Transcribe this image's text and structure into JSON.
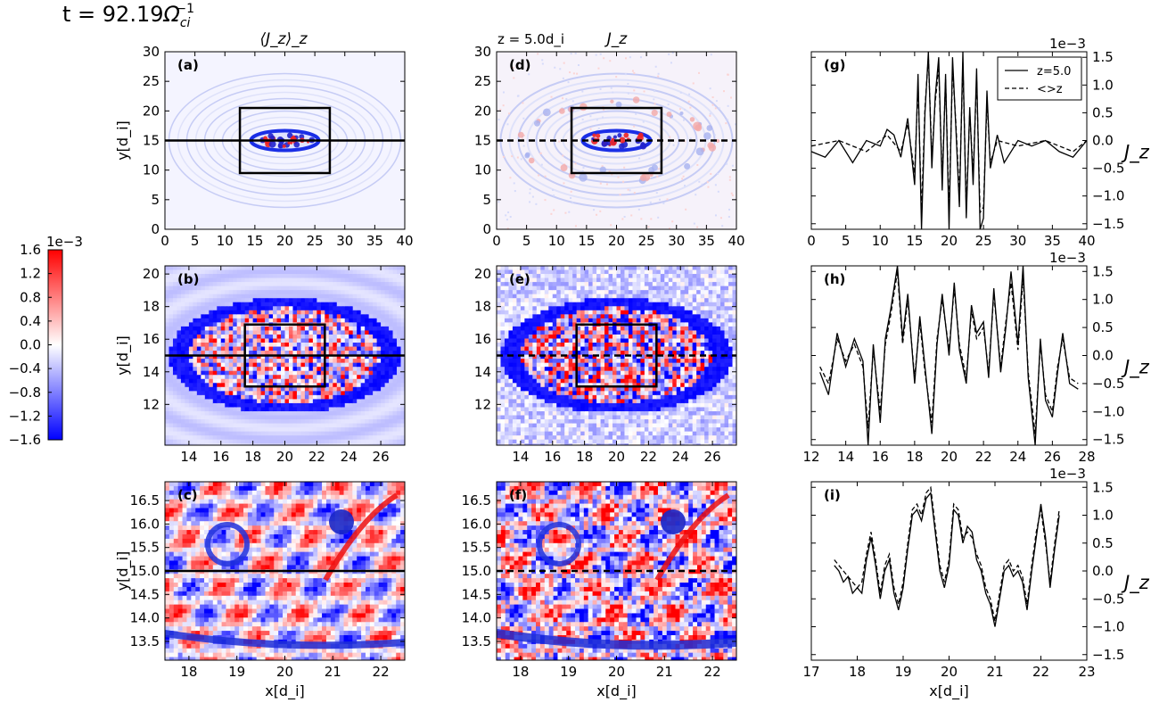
{
  "figure": {
    "main_title": "t = 92.19",
    "main_title_unit_base": "Ω",
    "main_title_unit_sub": "ci",
    "main_title_unit_sup": "−1",
    "col1_title": "⟨J_z⟩_z",
    "col2_slice_label": "z = 5.0d_i",
    "col2_title": "J_z"
  },
  "colorbar": {
    "exponent_label": "1e−3",
    "ticks": [
      "1.6",
      "1.2",
      "0.8",
      "0.4",
      "0.0",
      "−0.4",
      "−0.8",
      "−1.2",
      "−1.6"
    ],
    "range": [
      -1.6,
      1.6
    ],
    "colormap": "bwr",
    "color_low": "#0000ff",
    "color_mid": "#ffffff",
    "color_high": "#ff0000"
  },
  "chart_data": [
    {
      "id": "a",
      "type": "heatmap",
      "panel_label": "(a)",
      "field": "<J_z>_z",
      "xticks": [
        "0",
        "5",
        "10",
        "15",
        "20",
        "25",
        "30",
        "35",
        "40"
      ],
      "yticks": [
        "0",
        "5",
        "10",
        "15",
        "20",
        "25",
        "30"
      ],
      "xlim": [
        0,
        40
      ],
      "ylim": [
        0,
        30
      ],
      "ylabel": "y[d_i]",
      "cut": {
        "y": 15,
        "style": "solid"
      },
      "box": {
        "x": [
          12.5,
          27.5
        ],
        "y": [
          9.5,
          20.5
        ]
      },
      "structure": "elliptical island centered near (20,15)"
    },
    {
      "id": "d",
      "type": "heatmap",
      "panel_label": "(d)",
      "field": "J_z at z=5.0",
      "xticks": [
        "0",
        "5",
        "10",
        "15",
        "20",
        "25",
        "30",
        "35",
        "40"
      ],
      "yticks": [
        "0",
        "5",
        "10",
        "15",
        "20",
        "25",
        "30"
      ],
      "xlim": [
        0,
        40
      ],
      "ylim": [
        0,
        30
      ],
      "cut": {
        "y": 15,
        "style": "dashed"
      },
      "box": {
        "x": [
          12.5,
          27.5
        ],
        "y": [
          9.5,
          20.5
        ]
      },
      "structure": "elliptical island centered near (20,15), turbulent edges"
    },
    {
      "id": "g",
      "type": "line",
      "panel_label": "(g)",
      "xticks": [
        "0",
        "5",
        "10",
        "15",
        "20",
        "25",
        "30",
        "35",
        "40"
      ],
      "yticks": [
        "1.5",
        "1.0",
        "0.5",
        "0.0",
        "−0.5",
        "−1.0",
        "−1.5"
      ],
      "exponent_label": "1e−3",
      "ylabel": "J_z",
      "xlim": [
        0,
        40
      ],
      "ylim": [
        -1.6,
        1.6
      ],
      "legend": {
        "entries": [
          "z=5.0",
          "<>z"
        ],
        "placement": "top-right"
      },
      "series": [
        {
          "name": "z=5.0",
          "style": "solid",
          "x": [
            0,
            2,
            4,
            6,
            8,
            10,
            11,
            12,
            13,
            14,
            15,
            15.5,
            16,
            16.5,
            17,
            17.5,
            18,
            18.5,
            19,
            19.5,
            20,
            20.5,
            21,
            21.5,
            22,
            22.5,
            23,
            23.5,
            24,
            24.5,
            25,
            25.5,
            26,
            27,
            28,
            30,
            32,
            34,
            36,
            38,
            40
          ],
          "y": [
            -0.2,
            -0.3,
            0.0,
            -0.4,
            0.0,
            -0.1,
            0.2,
            0.1,
            -0.3,
            0.4,
            -0.8,
            1.2,
            -1.6,
            0.5,
            1.6,
            -0.5,
            0.8,
            1.5,
            -0.9,
            1.2,
            -1.6,
            1.5,
            0.2,
            -1.2,
            1.6,
            -1.4,
            0.6,
            -0.8,
            1.3,
            -1.6,
            -1.4,
            0.9,
            -0.5,
            0.1,
            -0.4,
            0.0,
            -0.1,
            0.0,
            -0.2,
            -0.3,
            0.0
          ]
        },
        {
          "name": "<>z",
          "style": "dashed",
          "x": [
            0,
            4,
            8,
            11,
            13,
            14,
            15,
            15.5,
            16,
            16.5,
            17,
            17.5,
            18,
            18.5,
            19,
            19.5,
            20,
            20.5,
            21,
            21.5,
            22,
            22.5,
            23,
            23.5,
            24,
            24.5,
            25,
            25.5,
            26,
            27,
            30,
            34,
            38,
            40
          ],
          "y": [
            -0.1,
            0.0,
            -0.2,
            0.1,
            -0.2,
            0.3,
            -0.6,
            1.0,
            -1.3,
            0.6,
            1.5,
            -0.3,
            0.7,
            1.3,
            -0.7,
            1.1,
            -1.3,
            1.3,
            0.3,
            -1.0,
            1.4,
            -1.2,
            0.5,
            -0.6,
            1.1,
            -1.3,
            -1.2,
            0.7,
            -0.4,
            0.0,
            -0.1,
            0.0,
            -0.2,
            0.0
          ]
        }
      ]
    },
    {
      "id": "b",
      "type": "heatmap",
      "panel_label": "(b)",
      "field": "<J_z>_z",
      "xticks": [
        "14",
        "16",
        "18",
        "20",
        "22",
        "24",
        "26"
      ],
      "yticks": [
        "12",
        "14",
        "16",
        "18",
        "20"
      ],
      "xlim": [
        12.5,
        27.5
      ],
      "ylim": [
        9.5,
        20.5
      ],
      "ylabel": "y[d_i]",
      "cut": {
        "y": 15,
        "style": "solid"
      },
      "box": {
        "x": [
          17.5,
          22.5
        ],
        "y": [
          13.1,
          16.9
        ]
      }
    },
    {
      "id": "e",
      "type": "heatmap",
      "panel_label": "(e)",
      "field": "J_z at z=5.0",
      "xticks": [
        "14",
        "16",
        "18",
        "20",
        "22",
        "24",
        "26"
      ],
      "yticks": [
        "12",
        "14",
        "16",
        "18",
        "20"
      ],
      "xlim": [
        12.5,
        27.5
      ],
      "ylim": [
        9.5,
        20.5
      ],
      "cut": {
        "y": 15,
        "style": "dashed"
      },
      "box": {
        "x": [
          17.5,
          22.5
        ],
        "y": [
          13.1,
          16.9
        ]
      }
    },
    {
      "id": "h",
      "type": "line",
      "panel_label": "(h)",
      "xticks": [
        "12",
        "14",
        "16",
        "18",
        "20",
        "22",
        "24",
        "26",
        "28"
      ],
      "yticks": [
        "1.5",
        "1.0",
        "0.5",
        "0.0",
        "−0.5",
        "−1.0",
        "−1.5"
      ],
      "exponent_label": "1e−3",
      "ylabel": "J_z",
      "xlim": [
        12,
        28
      ],
      "ylim": [
        -1.6,
        1.6
      ],
      "series": [
        {
          "name": "z=5.0",
          "style": "solid",
          "x": [
            12.5,
            13,
            13.5,
            14,
            14.5,
            15,
            15.3,
            15.6,
            16,
            16.3,
            16.6,
            17,
            17.3,
            17.6,
            18,
            18.3,
            18.6,
            19,
            19.3,
            19.6,
            20,
            20.3,
            20.6,
            21,
            21.3,
            21.6,
            22,
            22.3,
            22.6,
            23,
            23.3,
            23.6,
            24,
            24.3,
            24.6,
            25,
            25.3,
            25.6,
            26,
            26.3,
            26.6,
            27,
            27.5
          ],
          "y": [
            -0.3,
            -0.7,
            0.4,
            -0.2,
            0.3,
            -0.1,
            -1.6,
            0.2,
            -1.2,
            0.3,
            0.8,
            1.6,
            0.3,
            1.1,
            -0.5,
            0.7,
            -0.2,
            -1.4,
            0.2,
            1.1,
            0.0,
            1.3,
            0.1,
            -0.5,
            0.9,
            0.4,
            0.6,
            -0.4,
            1.2,
            -0.3,
            0.5,
            1.5,
            0.2,
            1.6,
            -0.4,
            -1.6,
            0.3,
            -0.8,
            -1.1,
            -0.3,
            0.4,
            -0.5,
            -0.6
          ]
        },
        {
          "name": "<>z",
          "style": "dashed",
          "x": [
            12.5,
            13,
            13.5,
            14,
            14.5,
            15,
            15.3,
            15.6,
            16,
            16.3,
            16.6,
            17,
            17.3,
            17.6,
            18,
            18.3,
            18.6,
            19,
            19.3,
            19.6,
            20,
            20.3,
            20.6,
            21,
            21.3,
            21.6,
            22,
            22.3,
            22.6,
            23,
            23.3,
            23.6,
            24,
            24.3,
            24.6,
            25,
            25.3,
            25.6,
            26,
            26.3,
            26.6,
            27,
            27.5
          ],
          "y": [
            -0.2,
            -0.5,
            0.3,
            -0.1,
            0.2,
            -0.2,
            -1.3,
            0.1,
            -1.0,
            0.2,
            0.7,
            1.5,
            0.2,
            1.0,
            -0.4,
            0.6,
            -0.3,
            -1.2,
            0.3,
            1.0,
            0.1,
            1.2,
            0.2,
            -0.4,
            0.8,
            0.3,
            0.5,
            -0.3,
            1.1,
            -0.2,
            0.6,
            1.3,
            0.1,
            1.4,
            -0.3,
            -1.4,
            0.2,
            -0.7,
            -1.0,
            -0.2,
            0.3,
            -0.4,
            -0.5
          ]
        }
      ]
    },
    {
      "id": "c",
      "type": "heatmap",
      "panel_label": "(c)",
      "field": "<J_z>_z",
      "xticks": [
        "18",
        "19",
        "20",
        "21",
        "22"
      ],
      "yticks": [
        "13.5",
        "14.0",
        "14.5",
        "15.0",
        "15.5",
        "16.0",
        "16.5"
      ],
      "xlim": [
        17.5,
        22.5
      ],
      "ylim": [
        13.1,
        16.9
      ],
      "xlabel": "x[d_i]",
      "ylabel": "y[d_i]",
      "cut": {
        "y": 15,
        "style": "solid"
      }
    },
    {
      "id": "f",
      "type": "heatmap",
      "panel_label": "(f)",
      "field": "J_z at z=5.0",
      "xticks": [
        "18",
        "19",
        "20",
        "21",
        "22"
      ],
      "yticks": [
        "13.5",
        "14.0",
        "14.5",
        "15.0",
        "15.5",
        "16.0",
        "16.5"
      ],
      "xlim": [
        17.5,
        22.5
      ],
      "ylim": [
        13.1,
        16.9
      ],
      "xlabel": "x[d_i]",
      "cut": {
        "y": 15,
        "style": "dashed"
      }
    },
    {
      "id": "i",
      "type": "line",
      "panel_label": "(i)",
      "xticks": [
        "17",
        "18",
        "19",
        "20",
        "21",
        "22",
        "23"
      ],
      "yticks": [
        "1.5",
        "1.0",
        "0.5",
        "0.0",
        "−0.5",
        "−1.0",
        "−1.5"
      ],
      "exponent_label": "1e−3",
      "ylabel": "J_z",
      "xlabel": "x[d_i]",
      "xlim": [
        17,
        23
      ],
      "ylim": [
        -1.6,
        1.6
      ],
      "series": [
        {
          "name": "z=5.0",
          "style": "solid",
          "x": [
            17.5,
            17.6,
            17.7,
            17.8,
            17.9,
            18.0,
            18.1,
            18.2,
            18.3,
            18.4,
            18.5,
            18.6,
            18.7,
            18.8,
            18.9,
            19.0,
            19.1,
            19.2,
            19.3,
            19.4,
            19.5,
            19.6,
            19.7,
            19.8,
            19.9,
            20.0,
            20.1,
            20.2,
            20.3,
            20.4,
            20.5,
            20.6,
            20.7,
            20.8,
            20.9,
            21.0,
            21.1,
            21.2,
            21.3,
            21.4,
            21.5,
            21.6,
            21.7,
            21.8,
            21.9,
            22.0,
            22.1,
            22.2,
            22.3,
            22.4
          ],
          "y": [
            0.1,
            0.0,
            -0.2,
            -0.1,
            -0.4,
            -0.3,
            -0.4,
            0.2,
            0.6,
            0.1,
            -0.5,
            0.0,
            0.2,
            -0.4,
            -0.7,
            -0.3,
            0.4,
            1.0,
            1.1,
            0.9,
            1.3,
            1.4,
            0.7,
            0.0,
            -0.3,
            0.1,
            1.1,
            1.0,
            0.5,
            0.8,
            0.7,
            0.2,
            0.0,
            -0.4,
            -0.6,
            -1.0,
            -0.5,
            0.0,
            0.1,
            -0.1,
            0.0,
            -0.2,
            -0.7,
            0.0,
            0.6,
            1.2,
            0.6,
            -0.3,
            0.4,
            1.0
          ]
        },
        {
          "name": "<>z",
          "style": "dashed",
          "x": [
            17.5,
            17.6,
            17.7,
            17.8,
            17.9,
            18.0,
            18.1,
            18.2,
            18.3,
            18.4,
            18.5,
            18.6,
            18.7,
            18.8,
            18.9,
            19.0,
            19.1,
            19.2,
            19.3,
            19.4,
            19.5,
            19.6,
            19.7,
            19.8,
            19.9,
            20.0,
            20.1,
            20.2,
            20.3,
            20.4,
            20.5,
            20.6,
            20.7,
            20.8,
            20.9,
            21.0,
            21.1,
            21.2,
            21.3,
            21.4,
            21.5,
            21.6,
            21.7,
            21.8,
            21.9,
            22.0,
            22.1,
            22.2,
            22.3,
            22.4
          ],
          "y": [
            0.2,
            0.1,
            0.0,
            -0.1,
            -0.2,
            -0.3,
            -0.2,
            0.3,
            0.7,
            0.2,
            -0.4,
            0.1,
            0.3,
            -0.3,
            -0.6,
            -0.2,
            0.5,
            1.1,
            1.2,
            1.0,
            1.4,
            1.5,
            0.8,
            0.1,
            -0.2,
            0.2,
            1.2,
            1.1,
            0.6,
            0.7,
            0.6,
            0.3,
            0.1,
            -0.3,
            -0.5,
            -0.9,
            -0.4,
            0.1,
            0.2,
            0.0,
            0.1,
            -0.1,
            -0.6,
            0.1,
            0.7,
            1.1,
            0.5,
            -0.2,
            0.5,
            1.1
          ]
        }
      ]
    }
  ]
}
